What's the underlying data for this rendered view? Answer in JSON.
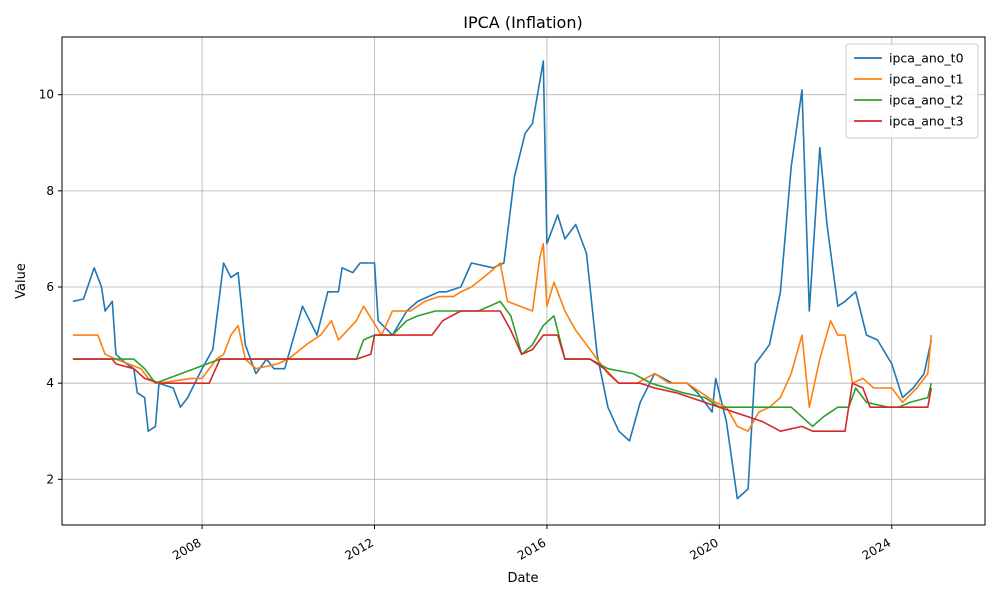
{
  "chart_data": {
    "type": "line",
    "title": "IPCA (Inflation)",
    "xlabel": "Date",
    "ylabel": "Value",
    "x_ticks": [
      "2008",
      "2012",
      "2016",
      "2020",
      "2024"
    ],
    "y_ticks": [
      2,
      4,
      6,
      8,
      10
    ],
    "xlim": [
      "2004-10-01",
      "2026-03-01"
    ],
    "ylim": [
      1.05,
      11.2
    ],
    "grid": true,
    "legend_position": "top-right",
    "series": [
      {
        "name": "ipca_ano_t0",
        "color": "#1f77b4",
        "points": [
          [
            "2005-01-01",
            5.7
          ],
          [
            "2005-04-01",
            5.75
          ],
          [
            "2005-07-01",
            6.4
          ],
          [
            "2005-09-01",
            6.0
          ],
          [
            "2005-10-01",
            5.5
          ],
          [
            "2005-12-01",
            5.7
          ],
          [
            "2006-01-01",
            4.6
          ],
          [
            "2006-04-01",
            4.4
          ],
          [
            "2006-06-01",
            4.3
          ],
          [
            "2006-07-01",
            3.8
          ],
          [
            "2006-09-01",
            3.7
          ],
          [
            "2006-10-01",
            3.0
          ],
          [
            "2006-12-01",
            3.1
          ],
          [
            "2007-01-01",
            4.0
          ],
          [
            "2007-05-01",
            3.9
          ],
          [
            "2007-07-01",
            3.5
          ],
          [
            "2007-09-01",
            3.7
          ],
          [
            "2008-01-01",
            4.3
          ],
          [
            "2008-04-01",
            4.7
          ],
          [
            "2008-07-01",
            6.5
          ],
          [
            "2008-09-01",
            6.2
          ],
          [
            "2008-11-01",
            6.3
          ],
          [
            "2009-01-01",
            4.8
          ],
          [
            "2009-04-01",
            4.2
          ],
          [
            "2009-07-01",
            4.5
          ],
          [
            "2009-09-01",
            4.3
          ],
          [
            "2009-12-01",
            4.3
          ],
          [
            "2010-05-01",
            5.6
          ],
          [
            "2010-09-01",
            5.0
          ],
          [
            "2010-12-01",
            5.9
          ],
          [
            "2011-03-01",
            5.9
          ],
          [
            "2011-04-01",
            6.4
          ],
          [
            "2011-07-01",
            6.3
          ],
          [
            "2011-09-01",
            6.5
          ],
          [
            "2012-01-01",
            6.5
          ],
          [
            "2012-02-01",
            5.3
          ],
          [
            "2012-06-01",
            5.0
          ],
          [
            "2012-10-01",
            5.5
          ],
          [
            "2013-01-01",
            5.7
          ],
          [
            "2013-04-01",
            5.8
          ],
          [
            "2013-07-01",
            5.9
          ],
          [
            "2013-09-01",
            5.9
          ],
          [
            "2014-01-01",
            6.0
          ],
          [
            "2014-04-01",
            6.5
          ],
          [
            "2014-10-01",
            6.4
          ],
          [
            "2015-01-01",
            6.5
          ],
          [
            "2015-04-01",
            8.3
          ],
          [
            "2015-07-01",
            9.2
          ],
          [
            "2015-09-01",
            9.4
          ],
          [
            "2015-12-01",
            10.7
          ],
          [
            "2016-01-01",
            6.9
          ],
          [
            "2016-04-01",
            7.5
          ],
          [
            "2016-06-01",
            7.0
          ],
          [
            "2016-09-01",
            7.3
          ],
          [
            "2016-12-01",
            6.7
          ],
          [
            "2017-03-01",
            4.6
          ],
          [
            "2017-06-01",
            3.5
          ],
          [
            "2017-09-01",
            3.0
          ],
          [
            "2017-12-01",
            2.8
          ],
          [
            "2018-03-01",
            3.6
          ],
          [
            "2018-07-01",
            4.2
          ],
          [
            "2018-12-01",
            4.0
          ],
          [
            "2019-04-01",
            4.0
          ],
          [
            "2019-07-01",
            3.8
          ],
          [
            "2019-11-01",
            3.4
          ],
          [
            "2019-12-01",
            4.1
          ],
          [
            "2020-03-01",
            3.2
          ],
          [
            "2020-06-01",
            1.6
          ],
          [
            "2020-09-01",
            1.8
          ],
          [
            "2020-11-01",
            4.4
          ],
          [
            "2021-03-01",
            4.8
          ],
          [
            "2021-06-01",
            5.9
          ],
          [
            "2021-09-01",
            8.5
          ],
          [
            "2021-12-01",
            10.1
          ],
          [
            "2022-02-01",
            5.5
          ],
          [
            "2022-05-01",
            8.9
          ],
          [
            "2022-07-01",
            7.3
          ],
          [
            "2022-10-01",
            5.6
          ],
          [
            "2022-12-01",
            5.7
          ],
          [
            "2023-03-01",
            5.9
          ],
          [
            "2023-06-01",
            5.0
          ],
          [
            "2023-09-01",
            4.9
          ],
          [
            "2024-01-01",
            4.4
          ],
          [
            "2024-04-01",
            3.7
          ],
          [
            "2024-07-01",
            3.9
          ],
          [
            "2024-10-01",
            4.2
          ],
          [
            "2024-12-01",
            4.9
          ]
        ]
      },
      {
        "name": "ipca_ano_t1",
        "color": "#ff7f0e",
        "points": [
          [
            "2005-01-01",
            5.0
          ],
          [
            "2005-08-01",
            5.0
          ],
          [
            "2005-10-01",
            4.6
          ],
          [
            "2006-01-01",
            4.5
          ],
          [
            "2006-08-01",
            4.3
          ],
          [
            "2006-10-01",
            4.1
          ],
          [
            "2007-01-01",
            4.0
          ],
          [
            "2007-10-01",
            4.1
          ],
          [
            "2008-01-01",
            4.1
          ],
          [
            "2008-05-01",
            4.5
          ],
          [
            "2008-07-01",
            4.6
          ],
          [
            "2008-09-01",
            5.0
          ],
          [
            "2008-11-01",
            5.2
          ],
          [
            "2009-01-01",
            4.5
          ],
          [
            "2009-04-01",
            4.3
          ],
          [
            "2009-10-01",
            4.4
          ],
          [
            "2010-01-01",
            4.5
          ],
          [
            "2010-06-01",
            4.8
          ],
          [
            "2010-10-01",
            5.0
          ],
          [
            "2011-01-01",
            5.3
          ],
          [
            "2011-03-01",
            4.9
          ],
          [
            "2011-08-01",
            5.3
          ],
          [
            "2011-10-01",
            5.6
          ],
          [
            "2012-03-01",
            5.0
          ],
          [
            "2012-06-01",
            5.5
          ],
          [
            "2012-11-01",
            5.5
          ],
          [
            "2013-03-01",
            5.7
          ],
          [
            "2013-07-01",
            5.8
          ],
          [
            "2013-11-01",
            5.8
          ],
          [
            "2014-01-01",
            5.9
          ],
          [
            "2014-04-01",
            6.0
          ],
          [
            "2014-09-01",
            6.3
          ],
          [
            "2014-12-01",
            6.5
          ],
          [
            "2015-02-01",
            5.7
          ],
          [
            "2015-09-01",
            5.5
          ],
          [
            "2015-11-01",
            6.6
          ],
          [
            "2015-12-01",
            6.9
          ],
          [
            "2016-01-01",
            5.6
          ],
          [
            "2016-03-01",
            6.1
          ],
          [
            "2016-06-01",
            5.5
          ],
          [
            "2016-09-01",
            5.1
          ],
          [
            "2016-12-01",
            4.8
          ],
          [
            "2017-03-01",
            4.5
          ],
          [
            "2017-06-01",
            4.2
          ],
          [
            "2017-09-01",
            4.0
          ],
          [
            "2018-02-01",
            4.0
          ],
          [
            "2018-07-01",
            4.2
          ],
          [
            "2018-11-01",
            4.0
          ],
          [
            "2019-04-01",
            4.0
          ],
          [
            "2019-08-01",
            3.8
          ],
          [
            "2019-12-01",
            3.6
          ],
          [
            "2020-03-01",
            3.5
          ],
          [
            "2020-06-01",
            3.1
          ],
          [
            "2020-09-01",
            3.0
          ],
          [
            "2020-12-01",
            3.4
          ],
          [
            "2021-03-01",
            3.5
          ],
          [
            "2021-06-01",
            3.7
          ],
          [
            "2021-09-01",
            4.2
          ],
          [
            "2021-12-01",
            5.0
          ],
          [
            "2022-02-01",
            3.5
          ],
          [
            "2022-05-01",
            4.5
          ],
          [
            "2022-08-01",
            5.3
          ],
          [
            "2022-10-01",
            5.0
          ],
          [
            "2022-12-01",
            5.0
          ],
          [
            "2023-02-01",
            4.0
          ],
          [
            "2023-05-01",
            4.1
          ],
          [
            "2023-08-01",
            3.9
          ],
          [
            "2024-01-01",
            3.9
          ],
          [
            "2024-04-01",
            3.6
          ],
          [
            "2024-08-01",
            3.9
          ],
          [
            "2024-11-01",
            4.2
          ],
          [
            "2024-12-01",
            5.0
          ]
        ]
      },
      {
        "name": "ipca_ano_t2",
        "color": "#2ca02c",
        "points": [
          [
            "2005-01-01",
            4.5
          ],
          [
            "2006-06-01",
            4.5
          ],
          [
            "2006-09-01",
            4.3
          ],
          [
            "2006-12-01",
            4.0
          ],
          [
            "2008-06-01",
            4.5
          ],
          [
            "2011-08-01",
            4.5
          ],
          [
            "2011-10-01",
            4.9
          ],
          [
            "2012-01-01",
            5.0
          ],
          [
            "2012-06-01",
            5.0
          ],
          [
            "2012-10-01",
            5.3
          ],
          [
            "2013-01-01",
            5.4
          ],
          [
            "2013-06-01",
            5.5
          ],
          [
            "2014-06-01",
            5.5
          ],
          [
            "2014-12-01",
            5.7
          ],
          [
            "2015-03-01",
            5.4
          ],
          [
            "2015-06-01",
            4.6
          ],
          [
            "2015-09-01",
            4.8
          ],
          [
            "2015-12-01",
            5.2
          ],
          [
            "2016-03-01",
            5.4
          ],
          [
            "2016-06-01",
            4.5
          ],
          [
            "2017-01-01",
            4.5
          ],
          [
            "2017-06-01",
            4.3
          ],
          [
            "2018-01-01",
            4.2
          ],
          [
            "2018-06-01",
            4.0
          ],
          [
            "2019-03-01",
            3.8
          ],
          [
            "2019-09-01",
            3.7
          ],
          [
            "2020-01-01",
            3.5
          ],
          [
            "2021-03-01",
            3.5
          ],
          [
            "2021-09-01",
            3.5
          ],
          [
            "2021-12-01",
            3.3
          ],
          [
            "2022-03-01",
            3.1
          ],
          [
            "2022-06-01",
            3.3
          ],
          [
            "2022-10-01",
            3.5
          ],
          [
            "2023-01-01",
            3.5
          ],
          [
            "2023-03-01",
            3.9
          ],
          [
            "2023-06-01",
            3.6
          ],
          [
            "2023-12-01",
            3.5
          ],
          [
            "2024-03-01",
            3.5
          ],
          [
            "2024-06-01",
            3.6
          ],
          [
            "2024-11-01",
            3.7
          ],
          [
            "2024-12-01",
            4.0
          ]
        ]
      },
      {
        "name": "ipca_ano_t3",
        "color": "#d62728",
        "points": [
          [
            "2005-01-01",
            4.5
          ],
          [
            "2005-12-01",
            4.5
          ],
          [
            "2006-01-01",
            4.4
          ],
          [
            "2006-06-01",
            4.3
          ],
          [
            "2006-09-01",
            4.1
          ],
          [
            "2007-01-01",
            4.0
          ],
          [
            "2008-03-01",
            4.0
          ],
          [
            "2008-06-01",
            4.5
          ],
          [
            "2011-08-01",
            4.5
          ],
          [
            "2011-12-01",
            4.6
          ],
          [
            "2012-01-01",
            5.0
          ],
          [
            "2013-05-01",
            5.0
          ],
          [
            "2013-08-01",
            5.3
          ],
          [
            "2014-01-01",
            5.5
          ],
          [
            "2014-12-01",
            5.5
          ],
          [
            "2015-03-01",
            5.1
          ],
          [
            "2015-06-01",
            4.6
          ],
          [
            "2015-09-01",
            4.7
          ],
          [
            "2015-12-01",
            5.0
          ],
          [
            "2016-04-01",
            5.0
          ],
          [
            "2016-06-01",
            4.5
          ],
          [
            "2017-01-01",
            4.5
          ],
          [
            "2017-05-01",
            4.3
          ],
          [
            "2017-09-01",
            4.0
          ],
          [
            "2018-03-01",
            4.0
          ],
          [
            "2018-07-01",
            3.9
          ],
          [
            "2019-01-01",
            3.8
          ],
          [
            "2019-09-01",
            3.6
          ],
          [
            "2020-01-01",
            3.5
          ],
          [
            "2020-09-01",
            3.3
          ],
          [
            "2021-01-01",
            3.2
          ],
          [
            "2021-06-01",
            3.0
          ],
          [
            "2021-12-01",
            3.1
          ],
          [
            "2022-03-01",
            3.0
          ],
          [
            "2022-12-01",
            3.0
          ],
          [
            "2023-02-01",
            4.0
          ],
          [
            "2023-05-01",
            3.9
          ],
          [
            "2023-07-01",
            3.5
          ],
          [
            "2024-05-01",
            3.5
          ],
          [
            "2024-11-01",
            3.5
          ],
          [
            "2024-12-01",
            3.9
          ]
        ]
      }
    ]
  }
}
